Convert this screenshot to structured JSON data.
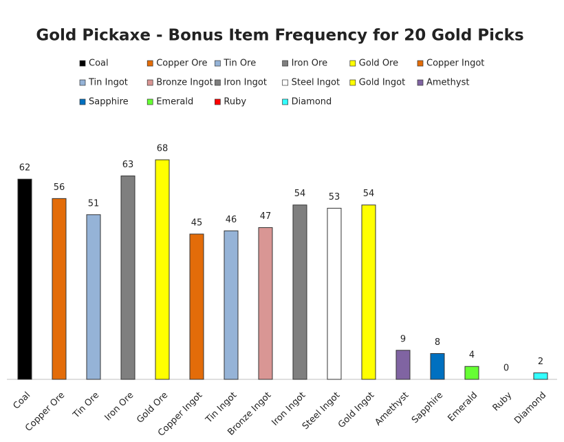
{
  "chart_data": {
    "type": "bar",
    "title": "Gold Pickaxe - Bonus Item Frequency for 20 Gold Picks",
    "categories": [
      "Coal",
      "Copper Ore",
      "Tin Ore",
      "Iron Ore",
      "Gold Ore",
      "Copper Ingot",
      "Tin Ingot",
      "Bronze Ingot",
      "Iron Ingot",
      "Steel Ingot",
      "Gold Ingot",
      "Amethyst",
      "Sapphire",
      "Emerald",
      "Ruby",
      "Diamond"
    ],
    "values": [
      62,
      56,
      51,
      63,
      68,
      45,
      46,
      47,
      54,
      53,
      54,
      9,
      8,
      4,
      0,
      2
    ],
    "colors": [
      "#000000",
      "#e36c09",
      "#95b3d7",
      "#7f7f7f",
      "#ffff00",
      "#e36c09",
      "#95b3d7",
      "#d99694",
      "#7f7f7f",
      "#ffffff",
      "#ffff00",
      "#8064a2",
      "#0070c0",
      "#66ff33",
      "#ff0000",
      "#33ffff"
    ],
    "legend": true
  }
}
